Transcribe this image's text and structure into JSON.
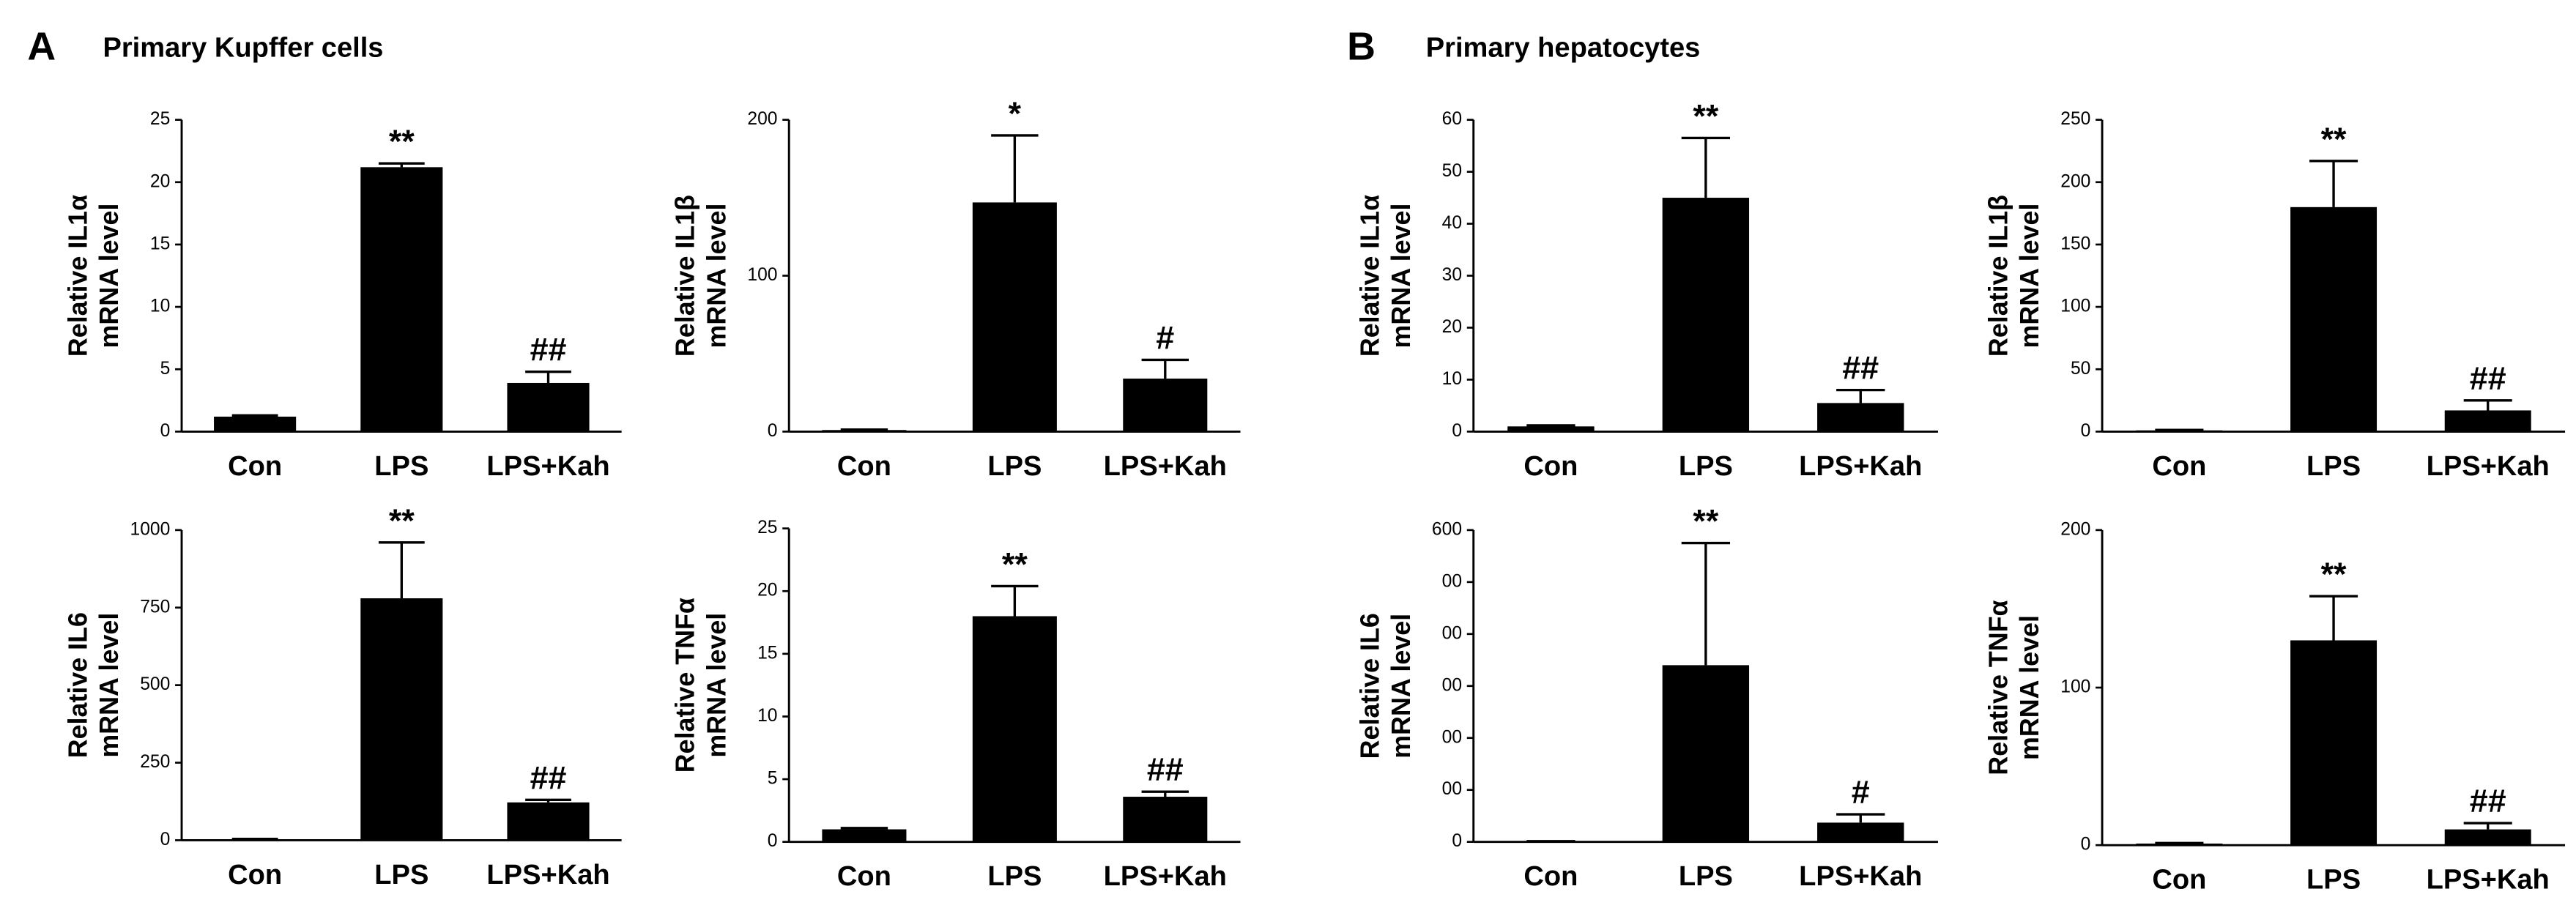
{
  "panels": [
    {
      "label": "A",
      "title": "Primary Kupffer cells"
    },
    {
      "label": "B",
      "title": "Primary hepatocytes"
    }
  ],
  "chart_data": [
    {
      "type": "bar",
      "ylabel": [
        "Relative IL1α",
        "mRNA level"
      ],
      "categories": [
        "Con",
        "LPS",
        "LPS+Kah"
      ],
      "values": [
        1.2,
        21.2,
        3.9
      ],
      "errors": [
        0.1,
        0.3,
        0.9
      ],
      "annotations": [
        null,
        "**",
        "##"
      ],
      "color": "#000000",
      "ylim": [
        0,
        25
      ],
      "yticks": [
        0,
        5,
        10,
        15,
        20,
        25
      ]
    },
    {
      "type": "bar",
      "ylabel": [
        "Relative IL1β",
        "mRNA level"
      ],
      "categories": [
        "Con",
        "LPS",
        "LPS+Kah"
      ],
      "values": [
        1,
        147,
        34
      ],
      "errors": [
        0.3,
        43,
        12
      ],
      "annotations": [
        null,
        "*",
        "#"
      ],
      "color": "#000000",
      "ylim": [
        0,
        200
      ],
      "yticks": [
        0,
        100,
        200
      ]
    },
    {
      "type": "bar",
      "ylabel": [
        "Relative IL6",
        "mRNA level"
      ],
      "categories": [
        "Con",
        "LPS",
        "LPS+Kah"
      ],
      "values": [
        3,
        780,
        122
      ],
      "errors": [
        1,
        180,
        8
      ],
      "annotations": [
        null,
        "**",
        "##"
      ],
      "color": "#000000",
      "ylim": [
        0,
        1000
      ],
      "yticks": [
        0,
        250,
        500,
        750,
        1000
      ]
    },
    {
      "type": "bar",
      "ylabel": [
        "Relative TNFα",
        "mRNA level"
      ],
      "categories": [
        "Con",
        "LPS",
        "LPS+Kah"
      ],
      "values": [
        1,
        18,
        3.6
      ],
      "errors": [
        0.1,
        2.4,
        0.4
      ],
      "annotations": [
        null,
        "**",
        "##"
      ],
      "color": "#000000",
      "ylim": [
        0,
        25
      ],
      "yticks": [
        0,
        5,
        10,
        15,
        20,
        25
      ]
    },
    {
      "type": "bar",
      "ylabel": [
        "Relative IL1α",
        "mRNA level"
      ],
      "categories": [
        "Con",
        "LPS",
        "LPS+Kah"
      ],
      "values": [
        1,
        45,
        5.5
      ],
      "errors": [
        0.2,
        11.5,
        2.5
      ],
      "annotations": [
        null,
        "**",
        "##"
      ],
      "color": "#000000",
      "ylim": [
        0,
        60
      ],
      "yticks": [
        0,
        10,
        20,
        30,
        40,
        50,
        60
      ]
    },
    {
      "type": "bar",
      "ylabel": [
        "Relative IL1β",
        "mRNA level"
      ],
      "categories": [
        "Con",
        "LPS",
        "LPS+Kah"
      ],
      "values": [
        1,
        180,
        17
      ],
      "errors": [
        0.3,
        37,
        8
      ],
      "annotations": [
        null,
        "**",
        "##"
      ],
      "color": "#000000",
      "ylim": [
        0,
        250
      ],
      "yticks": [
        0,
        50,
        100,
        150,
        200,
        250
      ]
    },
    {
      "type": "bar",
      "ylabel": [
        "Relative IL6",
        "mRNA level"
      ],
      "categories": [
        "Con",
        "LPS",
        "LPS+Kah"
      ],
      "values": [
        1,
        340,
        37
      ],
      "errors": [
        0.3,
        235,
        16
      ],
      "annotations": [
        null,
        "**",
        "#"
      ],
      "color": "#000000",
      "ylim": [
        0,
        600
      ],
      "yticks": [
        0,
        {
          "value": 100,
          "label": "00"
        },
        {
          "value": 200,
          "label": "00"
        },
        {
          "value": 300,
          "label": "00"
        },
        {
          "value": 400,
          "label": "00"
        },
        {
          "value": 500,
          "label": "00"
        },
        600
      ]
    },
    {
      "type": "bar",
      "ylabel": [
        "Relative TNFα",
        "mRNA level"
      ],
      "categories": [
        "Con",
        "LPS",
        "LPS+Kah"
      ],
      "values": [
        1,
        130,
        10
      ],
      "errors": [
        0.3,
        28,
        4
      ],
      "annotations": [
        null,
        "**",
        "##"
      ],
      "color": "#000000",
      "ylim": [
        0,
        200
      ],
      "yticks": [
        0,
        100,
        200
      ]
    }
  ]
}
